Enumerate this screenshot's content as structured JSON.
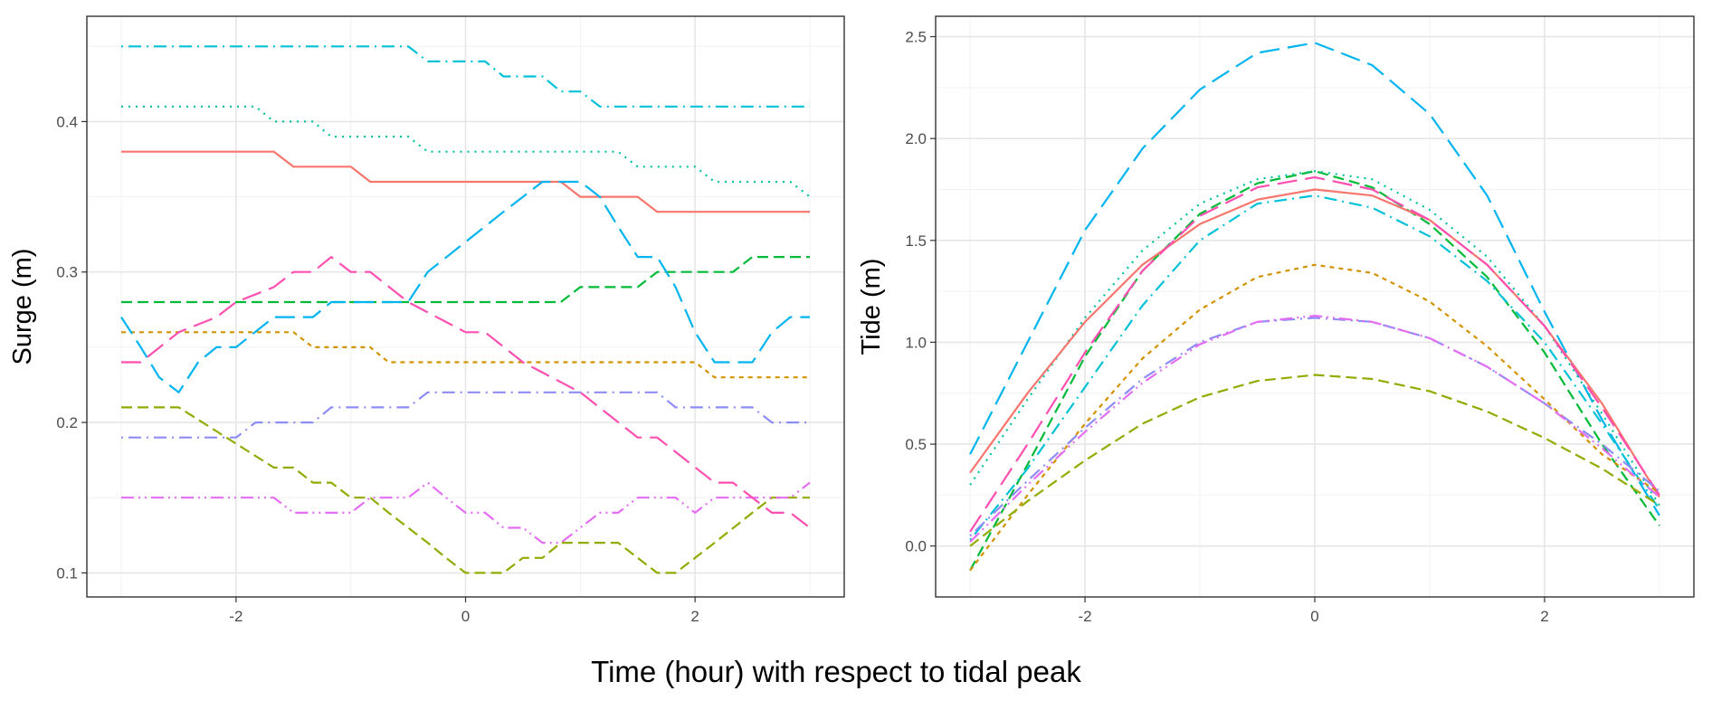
{
  "global_xlabel": "Time (hour) with respect to tidal peak",
  "colors": [
    "#F8766D",
    "#D39200",
    "#93AA00",
    "#00BA38",
    "#00C19F",
    "#00B9E3",
    "#619CFF",
    "#DB72FB",
    "#FF61C3"
  ],
  "chart_data": [
    {
      "type": "line",
      "panel": "left",
      "xlabel": "",
      "ylabel": "Surge (m)",
      "xlim": [
        -3.3,
        3.3
      ],
      "ylim": [
        0.084,
        0.47
      ],
      "xticks": [
        -2,
        0,
        2
      ],
      "yticks": [
        0.1,
        0.2,
        0.3,
        0.4
      ],
      "xtick_labels": [
        "-2",
        "0",
        "2"
      ],
      "ytick_labels": [
        "0.1",
        "0.2",
        "0.3",
        "0.4"
      ],
      "grid": true,
      "legend": "none",
      "series": [
        {
          "color": "#F8766D",
          "dash": "solid",
          "x": [
            -3,
            -1.67,
            -1.5,
            -1.0,
            -0.83,
            0.83,
            1.0,
            1.5,
            1.67,
            3
          ],
          "y": [
            0.38,
            0.38,
            0.37,
            0.37,
            0.36,
            0.36,
            0.35,
            0.35,
            0.34,
            0.34
          ]
        },
        {
          "color": "#D39200",
          "dash": "short",
          "x": [
            -3,
            -1.5,
            -1.33,
            -0.83,
            -0.67,
            2.0,
            2.17,
            3
          ],
          "y": [
            0.26,
            0.26,
            0.25,
            0.25,
            0.24,
            0.24,
            0.23,
            0.23
          ]
        },
        {
          "color": "#93AA00",
          "dash": "medium",
          "x": [
            -3,
            -2.5,
            -1.67,
            -1.5,
            -1.33,
            -1.17,
            -1.0,
            -0.83,
            -0.67,
            -0.5,
            -0.33,
            -0.17,
            0,
            0.33,
            0.5,
            0.67,
            0.83,
            1.0,
            1.17,
            1.33,
            1.5,
            1.67,
            1.83,
            2.17,
            2.5,
            2.67,
            3
          ],
          "y": [
            0.21,
            0.21,
            0.17,
            0.17,
            0.16,
            0.16,
            0.15,
            0.15,
            0.14,
            0.13,
            0.12,
            0.11,
            0.1,
            0.1,
            0.11,
            0.11,
            0.12,
            0.12,
            0.12,
            0.12,
            0.11,
            0.1,
            0.1,
            0.12,
            0.14,
            0.15,
            0.15
          ]
        },
        {
          "color": "#00BA38",
          "dash": "medium",
          "x": [
            -3,
            0.83,
            1.0,
            1.5,
            1.67,
            2.33,
            2.5,
            3
          ],
          "y": [
            0.28,
            0.28,
            0.29,
            0.29,
            0.3,
            0.3,
            0.31,
            0.31
          ]
        },
        {
          "color": "#00C19F",
          "dash": "dotted",
          "x": [
            -3,
            -2.0,
            -1.83,
            -1.67,
            -1.33,
            -1.17,
            -1.0,
            -0.5,
            -0.33,
            1.33,
            1.5,
            2.0,
            2.17,
            2.83,
            3
          ],
          "y": [
            0.41,
            0.41,
            0.41,
            0.4,
            0.4,
            0.39,
            0.39,
            0.39,
            0.38,
            0.38,
            0.37,
            0.37,
            0.36,
            0.36,
            0.35
          ]
        },
        {
          "color": "#00C1D6",
          "dash": "dotdash",
          "x": [
            -3,
            -0.5,
            -0.33,
            0.17,
            0.33,
            0.67,
            0.83,
            1.0,
            1.17,
            3
          ],
          "y": [
            0.45,
            0.45,
            0.44,
            0.44,
            0.43,
            0.43,
            0.42,
            0.42,
            0.41,
            0.41
          ]
        },
        {
          "color": "#00B4EF",
          "dash": "long",
          "x": [
            -3,
            -2.83,
            -2.67,
            -2.5,
            -2.33,
            -2.17,
            -2.0,
            -1.67,
            -1.5,
            -1.33,
            -1.17,
            -0.5,
            -0.33,
            0,
            0.33,
            0.67,
            1.0,
            1.17,
            1.33,
            1.5,
            1.67,
            1.83,
            2.0,
            2.17,
            2.5,
            2.67,
            2.83,
            3
          ],
          "y": [
            0.27,
            0.25,
            0.23,
            0.22,
            0.24,
            0.25,
            0.25,
            0.27,
            0.27,
            0.27,
            0.28,
            0.28,
            0.3,
            0.32,
            0.34,
            0.36,
            0.36,
            0.35,
            0.33,
            0.31,
            0.31,
            0.29,
            0.26,
            0.24,
            0.24,
            0.26,
            0.27,
            0.27
          ]
        },
        {
          "color": "#8E8CF5",
          "dash": "dotdash",
          "x": [
            -3,
            -2.0,
            -1.83,
            -1.67,
            -1.33,
            -1.17,
            -0.5,
            -0.33,
            1.67,
            1.83,
            2.5,
            2.67,
            3
          ],
          "y": [
            0.19,
            0.19,
            0.2,
            0.2,
            0.2,
            0.21,
            0.21,
            0.22,
            0.22,
            0.21,
            0.21,
            0.2,
            0.2
          ]
        },
        {
          "color": "#E46EF2",
          "dash": "dashdotdot",
          "x": [
            -3,
            -1.67,
            -1.5,
            -1.0,
            -0.83,
            -0.67,
            -0.5,
            -0.33,
            -0.17,
            0,
            0.17,
            0.33,
            0.5,
            0.67,
            0.83,
            1.0,
            1.17,
            1.33,
            1.5,
            1.83,
            2.0,
            2.17,
            2.5,
            2.67,
            2.83,
            3
          ],
          "y": [
            0.15,
            0.15,
            0.14,
            0.14,
            0.15,
            0.15,
            0.15,
            0.16,
            0.15,
            0.14,
            0.14,
            0.13,
            0.13,
            0.12,
            0.12,
            0.13,
            0.14,
            0.14,
            0.15,
            0.15,
            0.14,
            0.15,
            0.15,
            0.15,
            0.15,
            0.16
          ]
        },
        {
          "color": "#FF4FB0",
          "dash": "long",
          "x": [
            -3,
            -2.83,
            -2.5,
            -2.17,
            -2.0,
            -1.67,
            -1.5,
            -1.33,
            -1.17,
            -1.0,
            -0.83,
            -0.5,
            0,
            0.17,
            0.5,
            1.0,
            1.5,
            1.67,
            2.17,
            2.33,
            2.67,
            2.83,
            3
          ],
          "y": [
            0.24,
            0.24,
            0.26,
            0.27,
            0.28,
            0.29,
            0.3,
            0.3,
            0.31,
            0.3,
            0.3,
            0.28,
            0.26,
            0.26,
            0.24,
            0.22,
            0.19,
            0.19,
            0.16,
            0.16,
            0.14,
            0.14,
            0.13
          ]
        }
      ]
    },
    {
      "type": "line",
      "panel": "right",
      "xlabel": "",
      "ylabel": "Tide (m)",
      "xlim": [
        -3.3,
        3.3
      ],
      "ylim": [
        -0.25,
        2.6
      ],
      "xticks": [
        -2,
        0,
        2
      ],
      "yticks": [
        0.0,
        0.5,
        1.0,
        1.5,
        2.0,
        2.5
      ],
      "xtick_labels": [
        "-2",
        "0",
        "2"
      ],
      "ytick_labels": [
        "0.0",
        "0.5",
        "1.0",
        "1.5",
        "2.0",
        "2.5"
      ],
      "grid": true,
      "legend": "none",
      "series": [
        {
          "color": "#00B4EF",
          "dash": "long",
          "x": [
            -3,
            -2.5,
            -2,
            -1.5,
            -1,
            -0.5,
            0,
            0.5,
            1,
            1.5,
            2,
            2.5,
            3
          ],
          "y": [
            0.45,
            1.0,
            1.55,
            1.95,
            2.24,
            2.42,
            2.47,
            2.36,
            2.12,
            1.72,
            1.15,
            0.62,
            0.15
          ]
        },
        {
          "color": "#00BA38",
          "dash": "medium",
          "x": [
            -3,
            -2.5,
            -2,
            -1.5,
            -1,
            -0.5,
            0,
            0.5,
            1,
            1.5,
            2,
            2.5,
            3
          ],
          "y": [
            -0.12,
            0.4,
            0.93,
            1.35,
            1.63,
            1.78,
            1.84,
            1.76,
            1.58,
            1.32,
            0.95,
            0.5,
            0.1
          ]
        },
        {
          "color": "#00C19F",
          "dash": "dotted",
          "x": [
            -3,
            -2.5,
            -2,
            -1.5,
            -1,
            -0.5,
            0,
            0.5,
            1,
            1.5,
            2,
            2.5,
            3
          ],
          "y": [
            0.3,
            0.72,
            1.12,
            1.45,
            1.68,
            1.8,
            1.84,
            1.8,
            1.65,
            1.42,
            1.08,
            0.65,
            0.2
          ]
        },
        {
          "color": "#F8766D",
          "dash": "solid",
          "x": [
            -3,
            -2.5,
            -2,
            -1.5,
            -1,
            -0.5,
            0,
            0.5,
            1,
            1.5,
            2,
            2.5,
            3
          ],
          "y": [
            0.36,
            0.75,
            1.1,
            1.38,
            1.58,
            1.7,
            1.75,
            1.72,
            1.6,
            1.38,
            1.08,
            0.7,
            0.24
          ]
        },
        {
          "color": "#FF4FB0",
          "dash": "long",
          "x": [
            -3,
            -2.5,
            -2,
            -1.5,
            -1,
            -0.5,
            0,
            0.5,
            1,
            1.5,
            2,
            2.5,
            3
          ],
          "y": [
            0.07,
            0.5,
            0.95,
            1.35,
            1.62,
            1.76,
            1.81,
            1.75,
            1.6,
            1.38,
            1.08,
            0.68,
            0.25
          ]
        },
        {
          "color": "#00C1D6",
          "dash": "dotdash",
          "x": [
            -3,
            -2.5,
            -2,
            -1.5,
            -1,
            -0.5,
            0,
            0.5,
            1,
            1.5,
            2,
            2.5,
            3
          ],
          "y": [
            0.03,
            0.38,
            0.78,
            1.18,
            1.5,
            1.68,
            1.72,
            1.66,
            1.52,
            1.3,
            1.0,
            0.6,
            0.18
          ]
        },
        {
          "color": "#D39200",
          "dash": "short",
          "x": [
            -3,
            -2.5,
            -2,
            -1.5,
            -1,
            -0.5,
            0,
            0.5,
            1,
            1.5,
            2,
            2.5,
            3
          ],
          "y": [
            -0.12,
            0.25,
            0.6,
            0.92,
            1.16,
            1.32,
            1.38,
            1.34,
            1.2,
            0.98,
            0.72,
            0.45,
            0.26
          ]
        },
        {
          "color": "#8E8CF5",
          "dash": "dotdash",
          "x": [
            -3,
            -2.5,
            -2,
            -1.5,
            -1,
            -0.5,
            0,
            0.5,
            1,
            1.5,
            2,
            2.5,
            3
          ],
          "y": [
            0.05,
            0.32,
            0.58,
            0.82,
            1.0,
            1.1,
            1.12,
            1.1,
            1.02,
            0.88,
            0.7,
            0.5,
            0.27
          ]
        },
        {
          "color": "#E46EF2",
          "dash": "dashdotdot",
          "x": [
            -3,
            -2.5,
            -2,
            -1.5,
            -1,
            -0.5,
            0,
            0.5,
            1,
            1.5,
            2,
            2.5,
            3
          ],
          "y": [
            0.02,
            0.3,
            0.56,
            0.8,
            0.99,
            1.1,
            1.13,
            1.1,
            1.02,
            0.88,
            0.7,
            0.48,
            0.24
          ]
        },
        {
          "color": "#93AA00",
          "dash": "medium",
          "x": [
            -3,
            -2.5,
            -2,
            -1.5,
            -1,
            -0.5,
            0,
            0.5,
            1,
            1.5,
            2,
            2.5,
            3
          ],
          "y": [
            0.0,
            0.22,
            0.42,
            0.6,
            0.73,
            0.81,
            0.84,
            0.82,
            0.76,
            0.66,
            0.53,
            0.38,
            0.2
          ]
        }
      ]
    }
  ]
}
